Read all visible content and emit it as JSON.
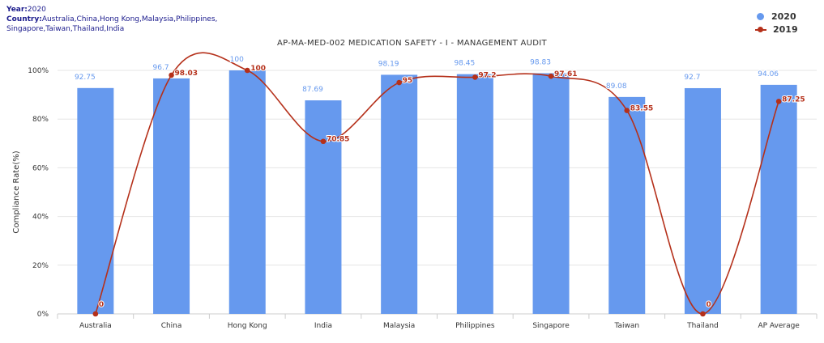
{
  "meta": {
    "year_label": "Year:",
    "year_value": "2020",
    "country_label": "Country:",
    "country_value_line1": "Australia,China,Hong Kong,Malaysia,Philippines,",
    "country_value_line2": "Singapore,Taiwan,Thailand,India"
  },
  "colors": {
    "bar_2020": "#6699ee",
    "line_2019": "#b5301a",
    "grid": "#e6e6e6",
    "axis": "#cccccc"
  },
  "chart_data": {
    "type": "bar",
    "title": "AP-MA-MED-002 MEDICATION SAFETY - I - MANAGEMENT AUDIT",
    "ylabel": "Compliance Rate(%)",
    "xlabel": "",
    "ylim": [
      0,
      100
    ],
    "yticks": [
      0,
      20,
      40,
      60,
      80,
      100
    ],
    "ytick_labels": [
      "0%",
      "20%",
      "40%",
      "60%",
      "80%",
      "100%"
    ],
    "legend_position": "top-right",
    "grid": true,
    "categories": [
      "Australia",
      "China",
      "Hong Kong",
      "India",
      "Malaysia",
      "Philippines",
      "Singapore",
      "Taiwan",
      "Thailand",
      "AP Average"
    ],
    "series": [
      {
        "name": "2020",
        "type": "bar",
        "values": [
          92.75,
          96.7,
          100,
          87.69,
          98.19,
          98.45,
          98.83,
          89.08,
          92.7,
          94.06
        ],
        "labels": [
          "92.75",
          "96.7",
          "100",
          "87.69",
          "98.19",
          "98.45",
          "98.83",
          "89.08",
          "92.7",
          "94.06"
        ]
      },
      {
        "name": "2019",
        "type": "line",
        "smooth": true,
        "values": [
          0,
          98.03,
          100,
          70.85,
          95,
          97.2,
          97.61,
          83.55,
          0,
          87.25
        ],
        "labels": [
          "0",
          "98.03",
          "100",
          "70.85",
          "95",
          "97.2",
          "97.61",
          "83.55",
          "0",
          "87.25"
        ]
      }
    ]
  }
}
